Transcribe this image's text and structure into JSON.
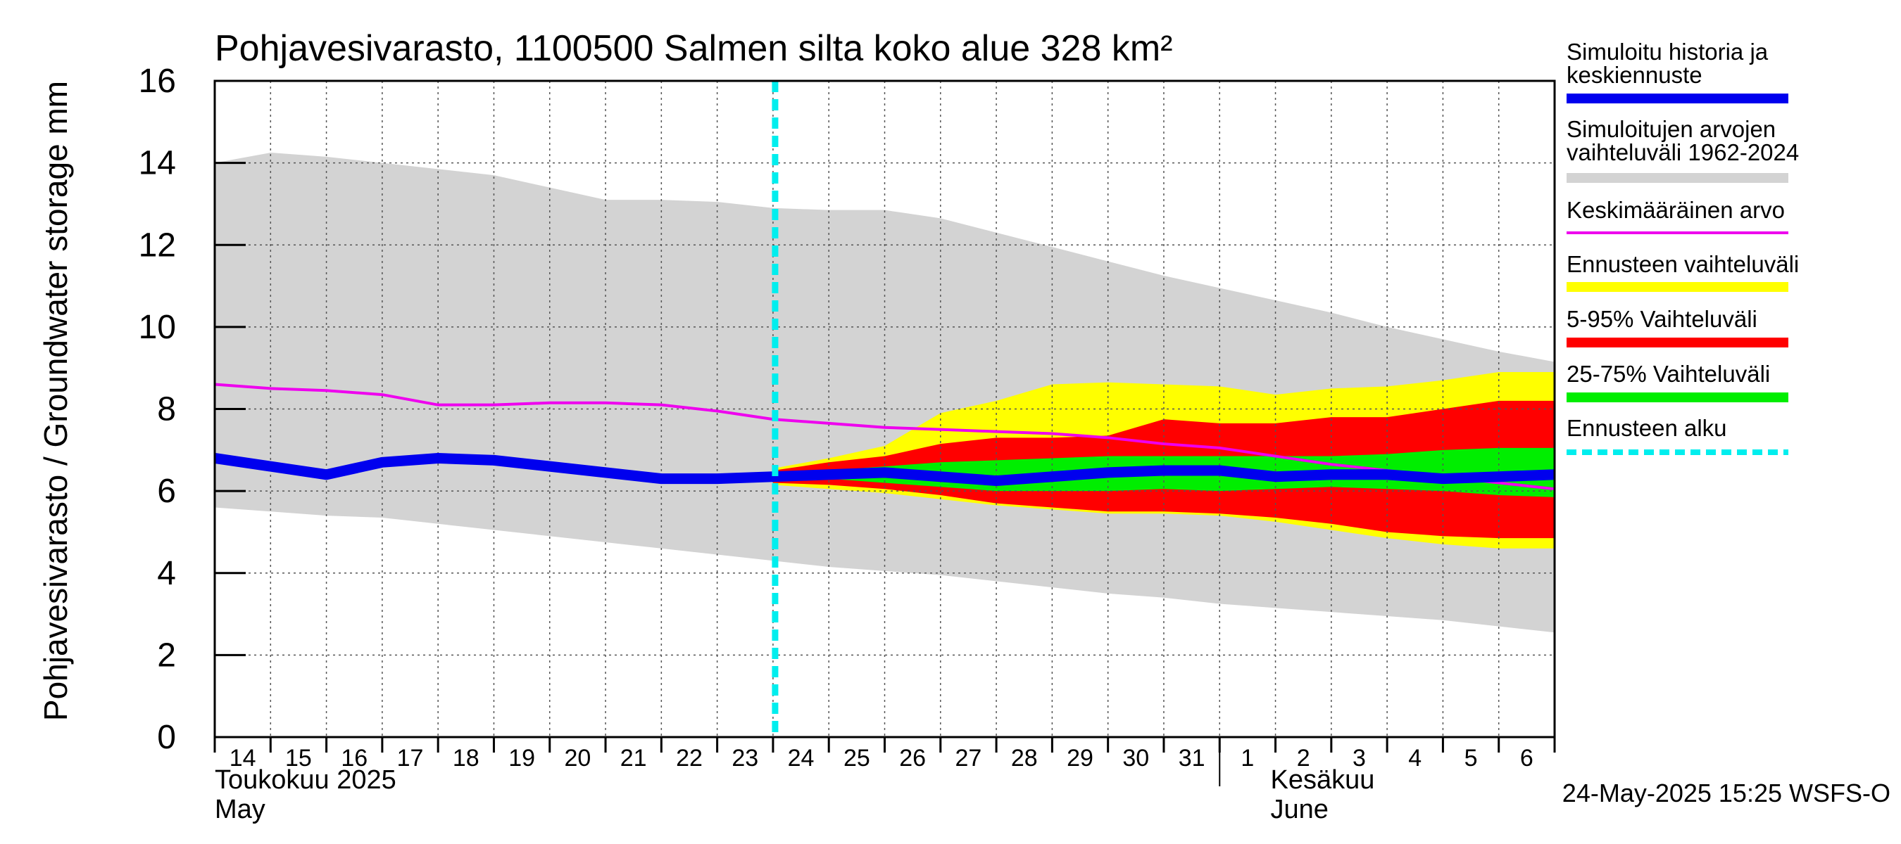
{
  "chart_data": {
    "type": "area",
    "title": "Pohjavesivarasto, 1100500 Salmen silta koko alue 328 km²",
    "ylabel": "Pohjavesivarasto / Groundwater storage   mm",
    "ylim": [
      0,
      16
    ],
    "yticks": [
      "0",
      "2",
      "4",
      "6",
      "8",
      "10",
      "12",
      "14",
      "16"
    ],
    "xlim": [
      0,
      24
    ],
    "x_tick_labels": [
      "14",
      "15",
      "16",
      "17",
      "18",
      "19",
      "20",
      "21",
      "22",
      "23",
      "24",
      "25",
      "26",
      "27",
      "28",
      "29",
      "30",
      "31",
      "1",
      "2",
      "3",
      "4",
      "5",
      "6"
    ],
    "month_labels": [
      {
        "line1": "Toukokuu  2025",
        "line2": "May"
      },
      {
        "line1": "Kesäkuu",
        "line2": "June"
      }
    ],
    "grid": true,
    "forecast_start_x": 10,
    "footer": "24-May-2025 15:25 WSFS-O",
    "legend": [
      {
        "label": "Simuloitu historia ja keskiennuste",
        "color": "#0000ee",
        "style": "thick"
      },
      {
        "label": "Simuloitujen arvojen vaihteluväli 1962-2024",
        "color": "#d3d3d3",
        "style": "band"
      },
      {
        "label": "Keskimääräinen arvo",
        "color": "#ee00ee",
        "style": "line"
      },
      {
        "label": "Ennusteen vaihteluväli",
        "color": "#ffff00",
        "style": "band"
      },
      {
        "label": "5-95% Vaihteluväli",
        "color": "#ff0000",
        "style": "band"
      },
      {
        "label": "25-75% Vaihteluväli",
        "color": "#00ee00",
        "style": "band"
      },
      {
        "label": "Ennusteen alku",
        "color": "#00eeee",
        "style": "dashed"
      }
    ],
    "historical_range": {
      "x": [
        0,
        1,
        2,
        3,
        4,
        5,
        6,
        7,
        8,
        9,
        10,
        11,
        12,
        13,
        14,
        15,
        16,
        17,
        18,
        19,
        20,
        21,
        22,
        23,
        24
      ],
      "upper": [
        14.0,
        14.25,
        14.15,
        14.0,
        13.85,
        13.7,
        13.4,
        13.1,
        13.1,
        13.05,
        12.9,
        12.85,
        12.85,
        12.65,
        12.3,
        11.95,
        11.6,
        11.25,
        10.95,
        10.65,
        10.35,
        10.0,
        9.7,
        9.4,
        9.15
      ],
      "lower": [
        5.6,
        5.5,
        5.4,
        5.35,
        5.2,
        5.05,
        4.9,
        4.75,
        4.6,
        4.45,
        4.3,
        4.15,
        4.05,
        3.95,
        3.8,
        3.65,
        3.5,
        3.4,
        3.25,
        3.15,
        3.05,
        2.95,
        2.85,
        2.7,
        2.55
      ]
    },
    "forecast_range": {
      "x": [
        10,
        11,
        12,
        13,
        14,
        15,
        16,
        17,
        18,
        19,
        20,
        21,
        22,
        23,
        24
      ],
      "upper": [
        6.55,
        6.8,
        7.1,
        7.9,
        8.2,
        8.6,
        8.65,
        8.6,
        8.55,
        8.35,
        8.5,
        8.55,
        8.7,
        8.9,
        8.9
      ],
      "lower": [
        6.15,
        6.05,
        5.95,
        5.8,
        5.65,
        5.55,
        5.45,
        5.45,
        5.4,
        5.25,
        5.05,
        4.85,
        4.7,
        4.6,
        4.6
      ]
    },
    "p5_95": {
      "x": [
        10,
        11,
        12,
        13,
        14,
        15,
        16,
        17,
        18,
        19,
        20,
        21,
        22,
        23,
        24
      ],
      "upper": [
        6.5,
        6.7,
        6.85,
        7.15,
        7.3,
        7.3,
        7.35,
        7.75,
        7.65,
        7.65,
        7.8,
        7.8,
        8.0,
        8.2,
        8.2
      ],
      "lower": [
        6.2,
        6.15,
        6.05,
        5.9,
        5.7,
        5.6,
        5.5,
        5.5,
        5.45,
        5.35,
        5.2,
        5.0,
        4.9,
        4.85,
        4.85
      ]
    },
    "p25_75": {
      "x": [
        10,
        11,
        12,
        13,
        14,
        15,
        16,
        17,
        18,
        19,
        20,
        21,
        22,
        23,
        24
      ],
      "upper": [
        6.4,
        6.5,
        6.6,
        6.7,
        6.75,
        6.8,
        6.85,
        6.85,
        6.85,
        6.85,
        6.85,
        6.9,
        7.0,
        7.05,
        7.05
      ],
      "lower": [
        6.3,
        6.3,
        6.2,
        6.1,
        6.0,
        6.0,
        6.0,
        6.05,
        6.0,
        6.05,
        6.1,
        6.05,
        6.0,
        5.9,
        5.85
      ]
    },
    "series": [
      {
        "name": "Keskimääräinen arvo",
        "x": [
          0,
          1,
          2,
          3,
          4,
          5,
          6,
          7,
          8,
          9,
          10,
          11,
          12,
          13,
          14,
          15,
          16,
          17,
          18,
          19,
          20,
          21,
          22,
          23,
          24
        ],
        "values": [
          8.6,
          8.5,
          8.45,
          8.35,
          8.1,
          8.1,
          8.15,
          8.15,
          8.1,
          7.95,
          7.75,
          7.65,
          7.55,
          7.5,
          7.45,
          7.4,
          7.3,
          7.15,
          7.05,
          6.85,
          6.65,
          6.5,
          6.35,
          6.2,
          6.05
        ]
      },
      {
        "name": "Simuloitu historia ja keskiennuste",
        "x": [
          0,
          1,
          2,
          3,
          4,
          5,
          6,
          7,
          8,
          9,
          10,
          11,
          12,
          13,
          14,
          15,
          16,
          17,
          18,
          19,
          20,
          21,
          22,
          23,
          24
        ],
        "values": [
          6.8,
          6.6,
          6.4,
          6.7,
          6.8,
          6.75,
          6.6,
          6.45,
          6.3,
          6.3,
          6.35,
          6.4,
          6.45,
          6.35,
          6.25,
          6.35,
          6.45,
          6.5,
          6.5,
          6.35,
          6.4,
          6.4,
          6.3,
          6.35,
          6.4
        ]
      }
    ]
  }
}
